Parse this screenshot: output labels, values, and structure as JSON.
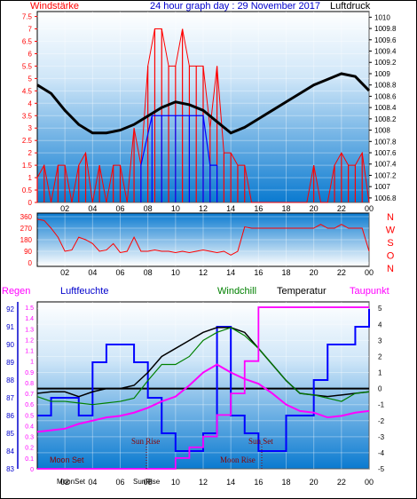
{
  "title": "24 hour graph day : 29 November 2017",
  "labels": {
    "windstarke": "Windstärke",
    "luftdruck": "Luftdruck",
    "regen": "Regen",
    "luftfeuchte": "Luftfeuchte",
    "windchill": "Windchill",
    "temperatur": "Temperatur",
    "taupunkt": "Taupunkt",
    "moon_set": "Moon Set",
    "sun_rise": "Sun Rise",
    "moon_rise": "Moon Rise",
    "sun_set": "Sun Set",
    "moon_set_axis": "MoonSet",
    "sun_rise_axis": "SunRise"
  },
  "colors": {
    "panel_top": "#ffffff",
    "panel_bottom": "#0a7ad0",
    "wind_gust": "#ff0000",
    "wind_avg": "#0000ff",
    "pressure": "#000000",
    "humidity": "#0000ff",
    "temperature": "#000000",
    "windchill": "#008000",
    "dewpoint": "#ff00ff",
    "rain": "#ff00ff"
  },
  "chart_data": [
    {
      "type": "line",
      "title": "24 hour graph day : 29 November 2017",
      "x_ticks": [
        "02",
        "04",
        "06",
        "08",
        "10",
        "12",
        "14",
        "16",
        "18",
        "20",
        "22",
        "00"
      ],
      "y_left_label": "Windstärke",
      "y_left_ticks": [
        0,
        0.5,
        1,
        1.5,
        2,
        2.5,
        3,
        3.5,
        4,
        4.5,
        5,
        5.5,
        6,
        6.5,
        7,
        7.5
      ],
      "ylim_left": [
        0,
        7.7
      ],
      "y_right_label": "Luftdruck",
      "y_right_ticks": [
        1006.8,
        1007,
        1007.2,
        1007.4,
        1007.6,
        1007.8,
        1008,
        1008.2,
        1008.4,
        1008.6,
        1008.8,
        1009,
        1009.2,
        1009.4,
        1009.6,
        1009.8,
        1010
      ],
      "ylim_right": [
        1006.72,
        1010.1
      ],
      "series": [
        {
          "name": "Windstärke",
          "axis": "left",
          "hours": [
            0,
            0.5,
            1,
            1.5,
            2,
            2.5,
            3,
            3.5,
            4,
            4.5,
            5,
            5.5,
            6,
            6.5,
            7,
            7.5,
            8,
            8.5,
            9,
            9.5,
            10,
            10.5,
            11,
            11.5,
            12,
            12.5,
            13,
            13.5,
            14,
            14.5,
            15,
            15.5,
            16,
            16.5,
            17,
            17.5,
            18,
            18.5,
            19,
            19.5,
            20,
            20.5,
            21,
            21.5,
            22,
            22.5,
            23,
            23.5,
            24
          ],
          "values": [
            1,
            1.5,
            0,
            1.5,
            1.5,
            0,
            1.5,
            2,
            0,
            1.5,
            0,
            1.5,
            1.5,
            0,
            3,
            1.5,
            5.5,
            7,
            7,
            5.5,
            5.5,
            7,
            5.5,
            5.5,
            5.5,
            3,
            5.5,
            2,
            2,
            1.5,
            1.5,
            0,
            0,
            0,
            0,
            0,
            0,
            0,
            0,
            0,
            1.5,
            0,
            0,
            1.5,
            2,
            1.5,
            1.5,
            2,
            0
          ]
        },
        {
          "name": "Luftdruck",
          "axis": "right",
          "hours": [
            0,
            1,
            2,
            3,
            4,
            5,
            6,
            7,
            8,
            9,
            10,
            11,
            12,
            13,
            14,
            15,
            16,
            17,
            18,
            19,
            20,
            21,
            22,
            23,
            24
          ],
          "values": [
            1008.8,
            1008.65,
            1008.35,
            1008.1,
            1007.95,
            1007.95,
            1008.0,
            1008.1,
            1008.25,
            1008.4,
            1008.5,
            1008.45,
            1008.35,
            1008.15,
            1007.95,
            1008.05,
            1008.2,
            1008.35,
            1008.5,
            1008.65,
            1008.8,
            1008.9,
            1009.0,
            1008.95,
            1008.7
          ]
        }
      ]
    },
    {
      "type": "line",
      "x_ticks": [
        "02",
        "04",
        "06",
        "08",
        "10",
        "12",
        "14",
        "16",
        "18",
        "20",
        "22",
        "00"
      ],
      "y_left_ticks": [
        0,
        90,
        180,
        270,
        360
      ],
      "ylim": [
        0,
        360
      ],
      "y_right_ticks": [
        "N",
        "W",
        "S",
        "O",
        "N"
      ],
      "series": [
        {
          "name": "Windrichtung",
          "hours": [
            0,
            0.5,
            1,
            1.5,
            2,
            2.5,
            3,
            3.5,
            4,
            4.5,
            5,
            5.5,
            6,
            6.5,
            7,
            7.5,
            8,
            8.5,
            9,
            9.5,
            10,
            10.5,
            11,
            11.5,
            12,
            12.5,
            13,
            13.5,
            14,
            14.5,
            15,
            15.5,
            16,
            16.5,
            17,
            17.5,
            18,
            18.5,
            19,
            19.5,
            20,
            20.5,
            21,
            21.5,
            22,
            22.5,
            23,
            23.5,
            24
          ],
          "values": [
            340,
            330,
            270,
            200,
            90,
            100,
            200,
            180,
            150,
            90,
            100,
            150,
            80,
            90,
            200,
            90,
            90,
            100,
            90,
            90,
            80,
            90,
            80,
            90,
            100,
            90,
            80,
            90,
            60,
            90,
            280,
            270,
            270,
            270,
            270,
            270,
            270,
            270,
            270,
            270,
            270,
            300,
            270,
            270,
            300,
            270,
            270,
            270,
            90
          ]
        }
      ]
    },
    {
      "type": "line",
      "x_ticks": [
        "02",
        "04",
        "06",
        "08",
        "10",
        "12",
        "14",
        "16",
        "18",
        "20",
        "22",
        "00"
      ],
      "y_regen_ticks": [
        0,
        0.1,
        0.2,
        0.3,
        0.4,
        0.5,
        0.6,
        0.7,
        0.8,
        0.9,
        1,
        1.1,
        1.2,
        1.3,
        1.4,
        1.5
      ],
      "y_feuchte_ticks": [
        83,
        84,
        85,
        86,
        87,
        88,
        89,
        90,
        91,
        92
      ],
      "y_temp_ticks": [
        -5,
        -4,
        -3,
        -2,
        -1,
        0,
        1,
        2,
        3,
        4,
        5
      ],
      "ylim_temp": [
        -5,
        5.4
      ],
      "ylim_feuchte": [
        83,
        92.4
      ],
      "series": [
        {
          "name": "Luftfeuchte",
          "axis": "feuchte",
          "hours": [
            0,
            1,
            2,
            3,
            4,
            5,
            6,
            7,
            8,
            9,
            10,
            11,
            12,
            13,
            14,
            15,
            16,
            17,
            18,
            19,
            20,
            21,
            22,
            23,
            24
          ],
          "values": [
            86,
            87,
            87,
            86,
            89,
            90,
            90,
            89,
            87,
            85,
            84,
            84,
            85,
            91,
            86,
            85,
            84,
            84,
            86,
            86,
            88,
            90,
            90,
            91,
            92
          ]
        },
        {
          "name": "Temperatur",
          "axis": "temp",
          "hours": [
            0,
            1,
            2,
            3,
            4,
            5,
            6,
            7,
            8,
            9,
            10,
            11,
            12,
            13,
            14,
            15,
            16,
            17,
            18,
            19,
            20,
            21,
            22,
            23,
            24
          ],
          "values": [
            -0.3,
            -0.2,
            -0.2,
            -0.5,
            -0.2,
            0.0,
            0.0,
            0.2,
            1.0,
            2.0,
            2.5,
            3.0,
            3.5,
            3.8,
            3.8,
            3.5,
            2.5,
            1.5,
            0.5,
            -0.3,
            -0.4,
            -0.5,
            -0.4,
            -0.3,
            -0.2
          ]
        },
        {
          "name": "Windchill",
          "axis": "temp",
          "hours": [
            0,
            1,
            2,
            3,
            4,
            5,
            6,
            7,
            8,
            9,
            10,
            11,
            12,
            13,
            14,
            15,
            16,
            17,
            18,
            19,
            20,
            21,
            22,
            23,
            24
          ],
          "values": [
            -0.5,
            -0.8,
            -0.8,
            -0.9,
            -1.0,
            -0.9,
            -0.8,
            -0.6,
            0.5,
            1.5,
            1.5,
            2.0,
            3.0,
            3.5,
            3.8,
            3.3,
            2.5,
            1.5,
            0.5,
            -0.3,
            -0.4,
            -0.6,
            -0.8,
            -0.3,
            -0.2
          ]
        },
        {
          "name": "Taupunkt",
          "axis": "temp",
          "hours": [
            0,
            1,
            2,
            3,
            4,
            5,
            6,
            7,
            8,
            9,
            10,
            11,
            12,
            13,
            14,
            15,
            16,
            17,
            18,
            19,
            20,
            21,
            22,
            23,
            24
          ],
          "values": [
            -2.7,
            -2.6,
            -2.5,
            -2.2,
            -2.0,
            -1.8,
            -1.7,
            -1.5,
            -1.2,
            -0.8,
            -0.5,
            0.2,
            1.0,
            1.5,
            1.0,
            0.6,
            0.3,
            -0.3,
            -1.0,
            -1.4,
            -1.5,
            -1.8,
            -1.7,
            -1.5,
            -1.4
          ]
        },
        {
          "name": "Regen",
          "axis": "regen",
          "hours": [
            0,
            7,
            8,
            9,
            10,
            11,
            12,
            13,
            14,
            15,
            16,
            16.5,
            17,
            18,
            19,
            20,
            21,
            22,
            23,
            24
          ],
          "values": [
            0,
            0,
            0,
            0,
            0.1,
            0.2,
            0.3,
            0.5,
            0.7,
            1.0,
            1.5,
            1.5,
            1.5,
            1.5,
            1.5,
            1.5,
            1.5,
            1.5,
            1.5,
            1.5
          ]
        }
      ]
    }
  ]
}
